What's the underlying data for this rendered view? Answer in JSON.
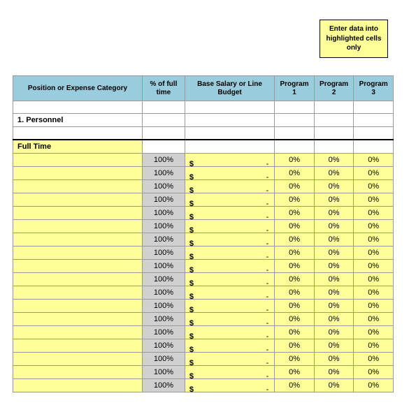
{
  "note": "Enter data into highlighted cells only",
  "headers": [
    "Position or Expense Category",
    "% of full time",
    "Base Salary or Line Budget",
    "Program 1",
    "Program 2",
    "Program 3"
  ],
  "section1": "1. Personnel",
  "section2": "Full Time",
  "rows": [
    {
      "pct": "100%",
      "sym": "$",
      "dash": "-",
      "p1": "0%",
      "p2": "0%",
      "p3": "0%"
    },
    {
      "pct": "100%",
      "sym": "$",
      "dash": "-",
      "p1": "0%",
      "p2": "0%",
      "p3": "0%"
    },
    {
      "pct": "100%",
      "sym": "$",
      "dash": "-",
      "p1": "0%",
      "p2": "0%",
      "p3": "0%"
    },
    {
      "pct": "100%",
      "sym": "$",
      "dash": "-",
      "p1": "0%",
      "p2": "0%",
      "p3": "0%"
    },
    {
      "pct": "100%",
      "sym": "$",
      "dash": "-",
      "p1": "0%",
      "p2": "0%",
      "p3": "0%"
    },
    {
      "pct": "100%",
      "sym": "$",
      "dash": "-",
      "p1": "0%",
      "p2": "0%",
      "p3": "0%"
    },
    {
      "pct": "100%",
      "sym": "$",
      "dash": "-",
      "p1": "0%",
      "p2": "0%",
      "p3": "0%"
    },
    {
      "pct": "100%",
      "sym": "$",
      "dash": "-",
      "p1": "0%",
      "p2": "0%",
      "p3": "0%"
    },
    {
      "pct": "100%",
      "sym": "$",
      "dash": "-",
      "p1": "0%",
      "p2": "0%",
      "p3": "0%"
    },
    {
      "pct": "100%",
      "sym": "$",
      "dash": "-",
      "p1": "0%",
      "p2": "0%",
      "p3": "0%"
    },
    {
      "pct": "100%",
      "sym": "$",
      "dash": "-",
      "p1": "0%",
      "p2": "0%",
      "p3": "0%"
    },
    {
      "pct": "100%",
      "sym": "$",
      "dash": "-",
      "p1": "0%",
      "p2": "0%",
      "p3": "0%"
    },
    {
      "pct": "100%",
      "sym": "$",
      "dash": "-",
      "p1": "0%",
      "p2": "0%",
      "p3": "0%"
    },
    {
      "pct": "100%",
      "sym": "$",
      "dash": "-",
      "p1": "0%",
      "p2": "0%",
      "p3": "0%"
    },
    {
      "pct": "100%",
      "sym": "$",
      "dash": "-",
      "p1": "0%",
      "p2": "0%",
      "p3": "0%"
    },
    {
      "pct": "100%",
      "sym": "$",
      "dash": "-",
      "p1": "0%",
      "p2": "0%",
      "p3": "0%"
    },
    {
      "pct": "100%",
      "sym": "$",
      "dash": "-",
      "p1": "0%",
      "p2": "0%",
      "p3": "0%"
    },
    {
      "pct": "100%",
      "sym": "$",
      "dash": "-",
      "p1": "0%",
      "p2": "0%",
      "p3": "0%"
    }
  ],
  "colors": {
    "highlight": "#ffff99",
    "header_bg": "#99ccdd",
    "grey": "#d0d0d0",
    "border": "#999999"
  }
}
